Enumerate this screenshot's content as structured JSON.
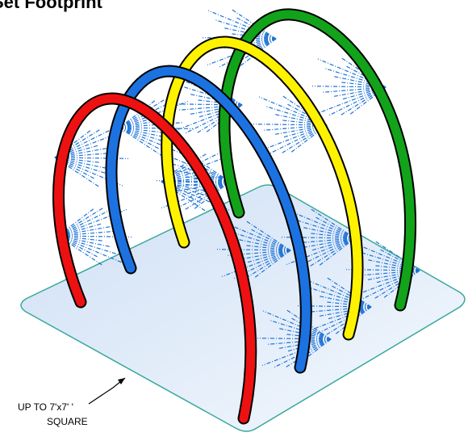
{
  "title": "Set Footprint",
  "callout": {
    "line1": "UP TO 7'x7' '",
    "line2": "SQUARE"
  }
}
